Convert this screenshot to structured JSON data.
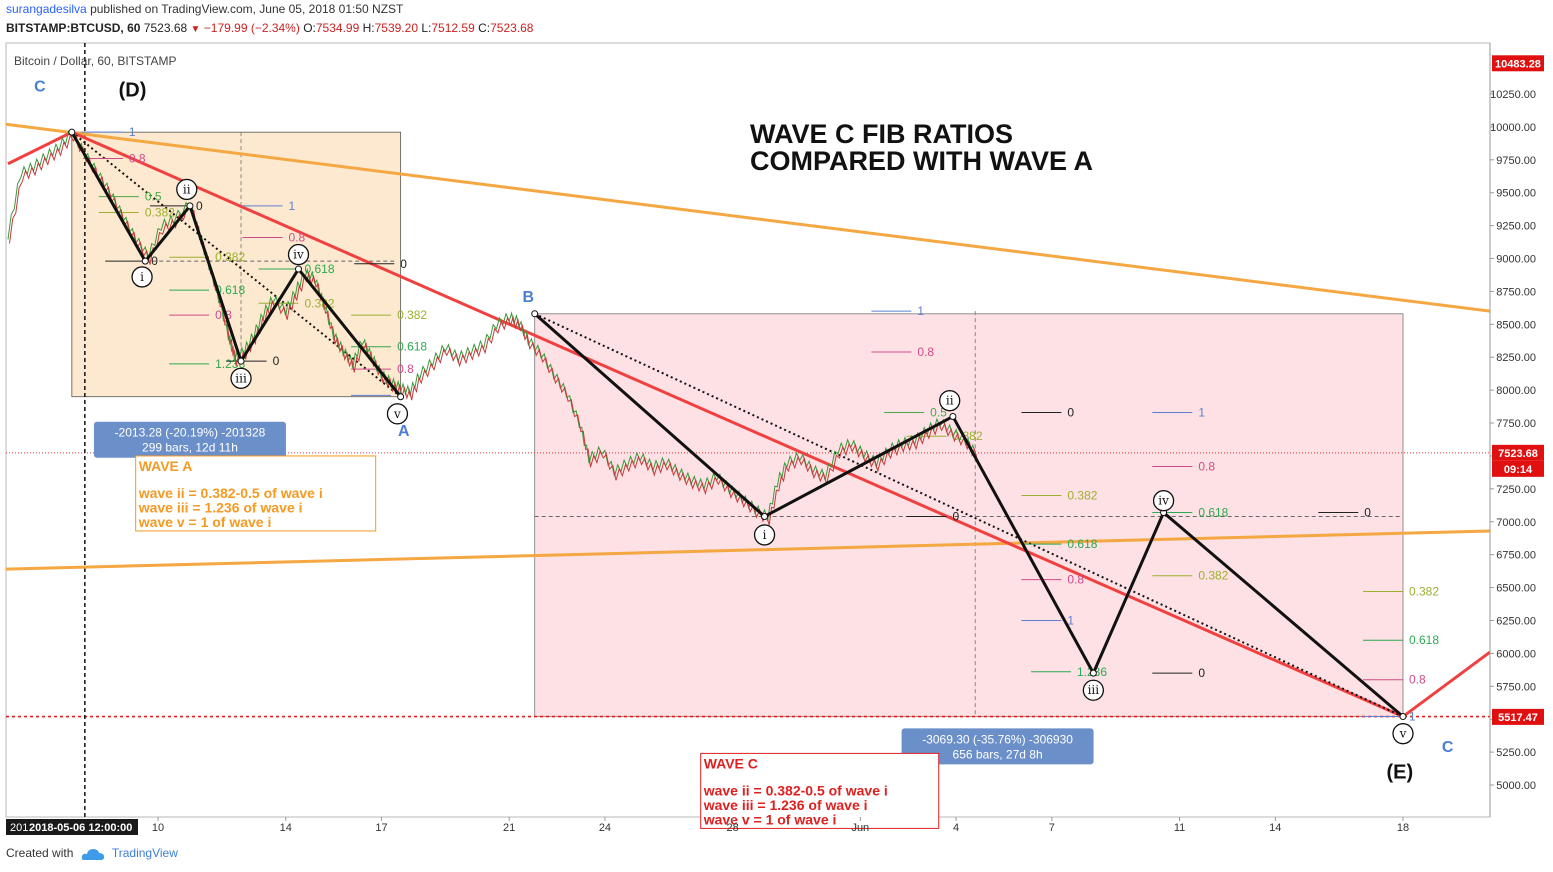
{
  "header": {
    "user": "surangadesilva",
    "published": "published on TradingView.com, June 05, 2018 01:50 NZST",
    "symbol": "BITSTAMP:BTCUSD, 60",
    "last": "7523.68",
    "change": "−179.99 (−2.34%)",
    "o_label": "O:",
    "o": "7534.99",
    "h_label": "H:",
    "h": "7539.20",
    "l_label": "L:",
    "l": "7512.59",
    "c_label": "C:",
    "c": "7523.68"
  },
  "footer": {
    "created_with": "Created with",
    "brand": "TradingView"
  },
  "chart_data": {
    "type": "line",
    "title": "Bitcoin / Dollar, 60, BITSTAMP",
    "annotation_title": [
      "WAVE C FIB RATIOS",
      "COMPARED WITH WAVE A"
    ],
    "y_axis": {
      "range": [
        4850,
        10650
      ],
      "ticks": [
        "5000.00",
        "5250.00",
        "5500.00",
        "5750.00",
        "6000.00",
        "6250.00",
        "6500.00",
        "6750.00",
        "7000.00",
        "7250.00",
        "7500.00",
        "7750.00",
        "8000.00",
        "8250.00",
        "8500.00",
        "8750.00",
        "9000.00",
        "9250.00",
        "9500.00",
        "9750.00",
        "10000.00",
        "10250.00"
      ],
      "tick_values": [
        5000,
        5250,
        5500,
        5750,
        6000,
        6250,
        6500,
        6750,
        7000,
        7250,
        7500,
        7750,
        8000,
        8250,
        8500,
        8750,
        9000,
        9250,
        9500,
        9750,
        10000,
        10250
      ],
      "price_tags": [
        {
          "value": 10483.28,
          "label": "10483.28"
        },
        {
          "value": 7523.68,
          "label": "7523.68",
          "sub": "09:14"
        },
        {
          "value": 5517.47,
          "label": "5517.47"
        }
      ]
    },
    "x_axis": {
      "start_label": "2018-05-06 12:00:00",
      "start_prefix": "201",
      "ticks": [
        {
          "label": "10",
          "day": 9.9
        },
        {
          "label": "14",
          "day": 13.9
        },
        {
          "label": "17",
          "day": 16.9
        },
        {
          "label": "21",
          "day": 20.9
        },
        {
          "label": "24",
          "day": 23.9
        },
        {
          "label": "28",
          "day": 27.9
        },
        {
          "label": "Jun",
          "day": 31.9
        },
        {
          "label": "4",
          "day": 34.9
        },
        {
          "label": "7",
          "day": 37.9
        },
        {
          "label": "11",
          "day": 41.9
        },
        {
          "label": "14",
          "day": 44.9
        },
        {
          "label": "18",
          "day": 48.9
        }
      ]
    },
    "price_series": [
      {
        "d": 5.2,
        "p": 9180
      },
      {
        "d": 5.6,
        "p": 9650
      },
      {
        "d": 6.0,
        "p": 9700
      },
      {
        "d": 6.4,
        "p": 9780
      },
      {
        "d": 6.8,
        "p": 9850
      },
      {
        "d": 7.2,
        "p": 9960
      },
      {
        "d": 7.6,
        "p": 9800
      },
      {
        "d": 8.0,
        "p": 9650
      },
      {
        "d": 8.4,
        "p": 9500
      },
      {
        "d": 8.8,
        "p": 9320
      },
      {
        "d": 9.2,
        "p": 9150
      },
      {
        "d": 9.6,
        "p": 9020
      },
      {
        "d": 10.0,
        "p": 9250
      },
      {
        "d": 10.4,
        "p": 9300
      },
      {
        "d": 10.9,
        "p": 9420
      },
      {
        "d": 11.2,
        "p": 9180
      },
      {
        "d": 11.5,
        "p": 8950
      },
      {
        "d": 11.8,
        "p": 8700
      },
      {
        "d": 12.1,
        "p": 8420
      },
      {
        "d": 12.3,
        "p": 8250
      },
      {
        "d": 12.6,
        "p": 8300
      },
      {
        "d": 12.9,
        "p": 8420
      },
      {
        "d": 13.2,
        "p": 8580
      },
      {
        "d": 13.5,
        "p": 8700
      },
      {
        "d": 13.9,
        "p": 8600
      },
      {
        "d": 14.2,
        "p": 8750
      },
      {
        "d": 14.5,
        "p": 8890
      },
      {
        "d": 14.8,
        "p": 8850
      },
      {
        "d": 15.1,
        "p": 8650
      },
      {
        "d": 15.4,
        "p": 8420
      },
      {
        "d": 15.7,
        "p": 8300
      },
      {
        "d": 16.0,
        "p": 8200
      },
      {
        "d": 16.3,
        "p": 8380
      },
      {
        "d": 16.6,
        "p": 8250
      },
      {
        "d": 16.9,
        "p": 8120
      },
      {
        "d": 17.2,
        "p": 8060
      },
      {
        "d": 17.5,
        "p": 8020
      },
      {
        "d": 17.8,
        "p": 7990
      },
      {
        "d": 18.1,
        "p": 8120
      },
      {
        "d": 18.5,
        "p": 8220
      },
      {
        "d": 18.9,
        "p": 8330
      },
      {
        "d": 19.3,
        "p": 8250
      },
      {
        "d": 19.7,
        "p": 8300
      },
      {
        "d": 20.1,
        "p": 8350
      },
      {
        "d": 20.5,
        "p": 8500
      },
      {
        "d": 20.9,
        "p": 8560
      },
      {
        "d": 21.2,
        "p": 8520
      },
      {
        "d": 21.5,
        "p": 8380
      },
      {
        "d": 21.9,
        "p": 8280
      },
      {
        "d": 22.3,
        "p": 8120
      },
      {
        "d": 22.7,
        "p": 7980
      },
      {
        "d": 23.1,
        "p": 7750
      },
      {
        "d": 23.4,
        "p": 7480
      },
      {
        "d": 23.8,
        "p": 7550
      },
      {
        "d": 24.2,
        "p": 7380
      },
      {
        "d": 24.6,
        "p": 7450
      },
      {
        "d": 25.0,
        "p": 7500
      },
      {
        "d": 25.4,
        "p": 7420
      },
      {
        "d": 25.8,
        "p": 7460
      },
      {
        "d": 26.2,
        "p": 7380
      },
      {
        "d": 26.6,
        "p": 7320
      },
      {
        "d": 27.0,
        "p": 7280
      },
      {
        "d": 27.4,
        "p": 7350
      },
      {
        "d": 27.8,
        "p": 7250
      },
      {
        "d": 28.2,
        "p": 7180
      },
      {
        "d": 28.6,
        "p": 7100
      },
      {
        "d": 29.0,
        "p": 7040
      },
      {
        "d": 29.3,
        "p": 7300
      },
      {
        "d": 29.6,
        "p": 7450
      },
      {
        "d": 30.0,
        "p": 7500
      },
      {
        "d": 30.4,
        "p": 7400
      },
      {
        "d": 30.8,
        "p": 7350
      },
      {
        "d": 31.2,
        "p": 7550
      },
      {
        "d": 31.6,
        "p": 7600
      },
      {
        "d": 32.0,
        "p": 7520
      },
      {
        "d": 32.4,
        "p": 7450
      },
      {
        "d": 32.8,
        "p": 7550
      },
      {
        "d": 33.2,
        "p": 7600
      },
      {
        "d": 33.6,
        "p": 7620
      },
      {
        "d": 34.0,
        "p": 7700
      },
      {
        "d": 34.4,
        "p": 7760
      },
      {
        "d": 34.8,
        "p": 7680
      },
      {
        "d": 35.2,
        "p": 7620
      },
      {
        "d": 35.5,
        "p": 7523
      }
    ],
    "waves": [
      {
        "name": "wave-a-impulse",
        "points": [
          [
            7.2,
            9960
          ],
          [
            9.5,
            8980
          ],
          [
            10.9,
            9400
          ],
          [
            12.5,
            8220
          ],
          [
            14.3,
            8920
          ],
          [
            17.5,
            7950
          ]
        ]
      },
      {
        "name": "wave-c-impulse",
        "points": [
          [
            21.7,
            8580
          ],
          [
            28.9,
            7040
          ],
          [
            34.8,
            7800
          ],
          [
            39.2,
            5850
          ],
          [
            41.4,
            7070
          ],
          [
            48.9,
            5520
          ]
        ]
      }
    ],
    "wave_labels": [
      {
        "text": "C",
        "d": 6.2,
        "p": 10270,
        "style": "blue"
      },
      {
        "text": "(D)",
        "d": 9.1,
        "p": 10230,
        "style": "big"
      },
      {
        "text": "ii",
        "d": 10.8,
        "p": 9525,
        "style": "circle"
      },
      {
        "text": "i",
        "d": 9.4,
        "p": 8860,
        "style": "circle"
      },
      {
        "text": "iv",
        "d": 14.3,
        "p": 9030,
        "style": "circle"
      },
      {
        "text": "iii",
        "d": 12.5,
        "p": 8090,
        "style": "circle"
      },
      {
        "text": "v",
        "d": 17.4,
        "p": 7820,
        "style": "circle"
      },
      {
        "text": "A",
        "d": 17.6,
        "p": 7650,
        "style": "blue"
      },
      {
        "text": "B",
        "d": 21.5,
        "p": 8670,
        "style": "blue"
      },
      {
        "text": "i",
        "d": 28.9,
        "p": 6900,
        "style": "circle"
      },
      {
        "text": "ii",
        "d": 34.7,
        "p": 7920,
        "style": "circle"
      },
      {
        "text": "iii",
        "d": 39.2,
        "p": 5720,
        "style": "circle"
      },
      {
        "text": "iv",
        "d": 41.4,
        "p": 7160,
        "style": "circle"
      },
      {
        "text": "v",
        "d": 48.9,
        "p": 5390,
        "style": "circle"
      },
      {
        "text": "C",
        "d": 50.3,
        "p": 5250,
        "style": "blue"
      },
      {
        "text": "(E)",
        "d": 48.8,
        "p": 5050,
        "style": "big"
      }
    ],
    "fib_levels": [
      {
        "label": "1",
        "d": 8.8,
        "p": 9960,
        "color": "#5b7fd0"
      },
      {
        "label": "0.8",
        "d": 8.8,
        "p": 9760,
        "color": "#d04a8a"
      },
      {
        "label": "0.5",
        "d": 9.3,
        "p": 9470,
        "color": "#4aa84a"
      },
      {
        "label": "0.382",
        "d": 9.3,
        "p": 9350,
        "color": "#9cb030"
      },
      {
        "label": "0",
        "d": 10.9,
        "p": 9400,
        "color": "#222222"
      },
      {
        "label": "0",
        "d": 9.5,
        "p": 8980,
        "color": "#222222"
      },
      {
        "label": "0.382",
        "d": 11.5,
        "p": 9010,
        "color": "#9cb030"
      },
      {
        "label": "0.618",
        "d": 11.5,
        "p": 8760,
        "color": "#2ea850"
      },
      {
        "label": "0.8",
        "d": 11.5,
        "p": 8570,
        "color": "#d04a8a"
      },
      {
        "label": "1.236",
        "d": 11.5,
        "p": 8200,
        "color": "#2ea850"
      },
      {
        "label": "0",
        "d": 13.3,
        "p": 8220,
        "color": "#222222"
      },
      {
        "label": "1",
        "d": 13.8,
        "p": 9400,
        "color": "#5b7fd0"
      },
      {
        "label": "0.8",
        "d": 13.8,
        "p": 9160,
        "color": "#d04a8a"
      },
      {
        "label": "0.618",
        "d": 14.3,
        "p": 8920,
        "color": "#2ea850"
      },
      {
        "label": "0.382",
        "d": 14.3,
        "p": 8660,
        "color": "#9cb030"
      },
      {
        "label": "0",
        "d": 17.3,
        "p": 8960,
        "color": "#222222"
      },
      {
        "label": "0.382",
        "d": 17.2,
        "p": 8570,
        "color": "#9cb030"
      },
      {
        "label": "0.618",
        "d": 17.2,
        "p": 8330,
        "color": "#2ea850"
      },
      {
        "label": "0.8",
        "d": 17.2,
        "p": 8160,
        "color": "#d04a8a"
      },
      {
        "label": "1",
        "d": 17.2,
        "p": 7960,
        "color": "#5b7fd0"
      },
      {
        "label": "1",
        "d": 33.5,
        "p": 8600,
        "color": "#5b7fd0"
      },
      {
        "label": "0.8",
        "d": 33.5,
        "p": 8290,
        "color": "#d04a8a"
      },
      {
        "label": "0.5",
        "d": 33.9,
        "p": 7830,
        "color": "#4aa84a"
      },
      {
        "label": "0.382",
        "d": 34.6,
        "p": 7650,
        "color": "#9cb030"
      },
      {
        "label": "0",
        "d": 34.6,
        "p": 7040,
        "color": "#222222"
      },
      {
        "label": "0",
        "d": 38.2,
        "p": 7830,
        "color": "#222222"
      },
      {
        "label": "0.382",
        "d": 38.2,
        "p": 7200,
        "color": "#9cb030"
      },
      {
        "label": "0.618",
        "d": 38.2,
        "p": 6830,
        "color": "#2ea850"
      },
      {
        "label": "0.8",
        "d": 38.2,
        "p": 6560,
        "color": "#d04a8a"
      },
      {
        "label": "1",
        "d": 38.2,
        "p": 6250,
        "color": "#5b7fd0"
      },
      {
        "label": "1.236",
        "d": 38.5,
        "p": 5860,
        "color": "#2ea850"
      },
      {
        "label": "1",
        "d": 42.3,
        "p": 7830,
        "color": "#5b7fd0"
      },
      {
        "label": "0.8",
        "d": 42.3,
        "p": 7420,
        "color": "#d04a8a"
      },
      {
        "label": "0.618",
        "d": 42.3,
        "p": 7070,
        "color": "#2ea850"
      },
      {
        "label": "0.382",
        "d": 42.3,
        "p": 6590,
        "color": "#9cb030"
      },
      {
        "label": "0",
        "d": 42.3,
        "p": 5850,
        "color": "#222222"
      },
      {
        "label": "0",
        "d": 47.5,
        "p": 7070,
        "color": "#222222"
      },
      {
        "label": "0.382",
        "d": 48.9,
        "p": 6470,
        "color": "#9cb030"
      },
      {
        "label": "0.618",
        "d": 48.9,
        "p": 6100,
        "color": "#2ea850"
      },
      {
        "label": "0.8",
        "d": 48.9,
        "p": 5800,
        "color": "#d04a8a"
      },
      {
        "label": "1",
        "d": 48.9,
        "p": 5520,
        "color": "#5b7fd0"
      }
    ],
    "measurements": [
      {
        "line1": "-2013.28 (-20.19%) -201328",
        "line2": "299 bars, 12d 11h",
        "d": 10.9,
        "p": 7760
      },
      {
        "line1": "-3069.30 (-35.76%) -306930",
        "line2": "656 bars, 27d 8h",
        "d": 36.2,
        "p": 5430
      }
    ],
    "notes": [
      {
        "title": "WAVE A",
        "color": "#f59a23",
        "lines": [
          "wave ii = 0.382-0.5 of wave i",
          "wave iii = 1.236 of wave i",
          "wave v = 1 of wave i"
        ]
      },
      {
        "title": "WAVE C",
        "color": "#e02020",
        "lines": [
          "wave ii = 0.382-0.5 of wave i",
          "wave iii = 1.236 of wave i",
          "wave v = 1 of wave i"
        ]
      }
    ],
    "colors": {
      "trend_orange": "#f5a742",
      "trend_red": "#f04040",
      "box_a": "#fde9cf",
      "box_c": "#fde1e4",
      "wave_line": "#111111",
      "axis_tag": "#e01010",
      "measure": "#6b8fc9"
    }
  }
}
